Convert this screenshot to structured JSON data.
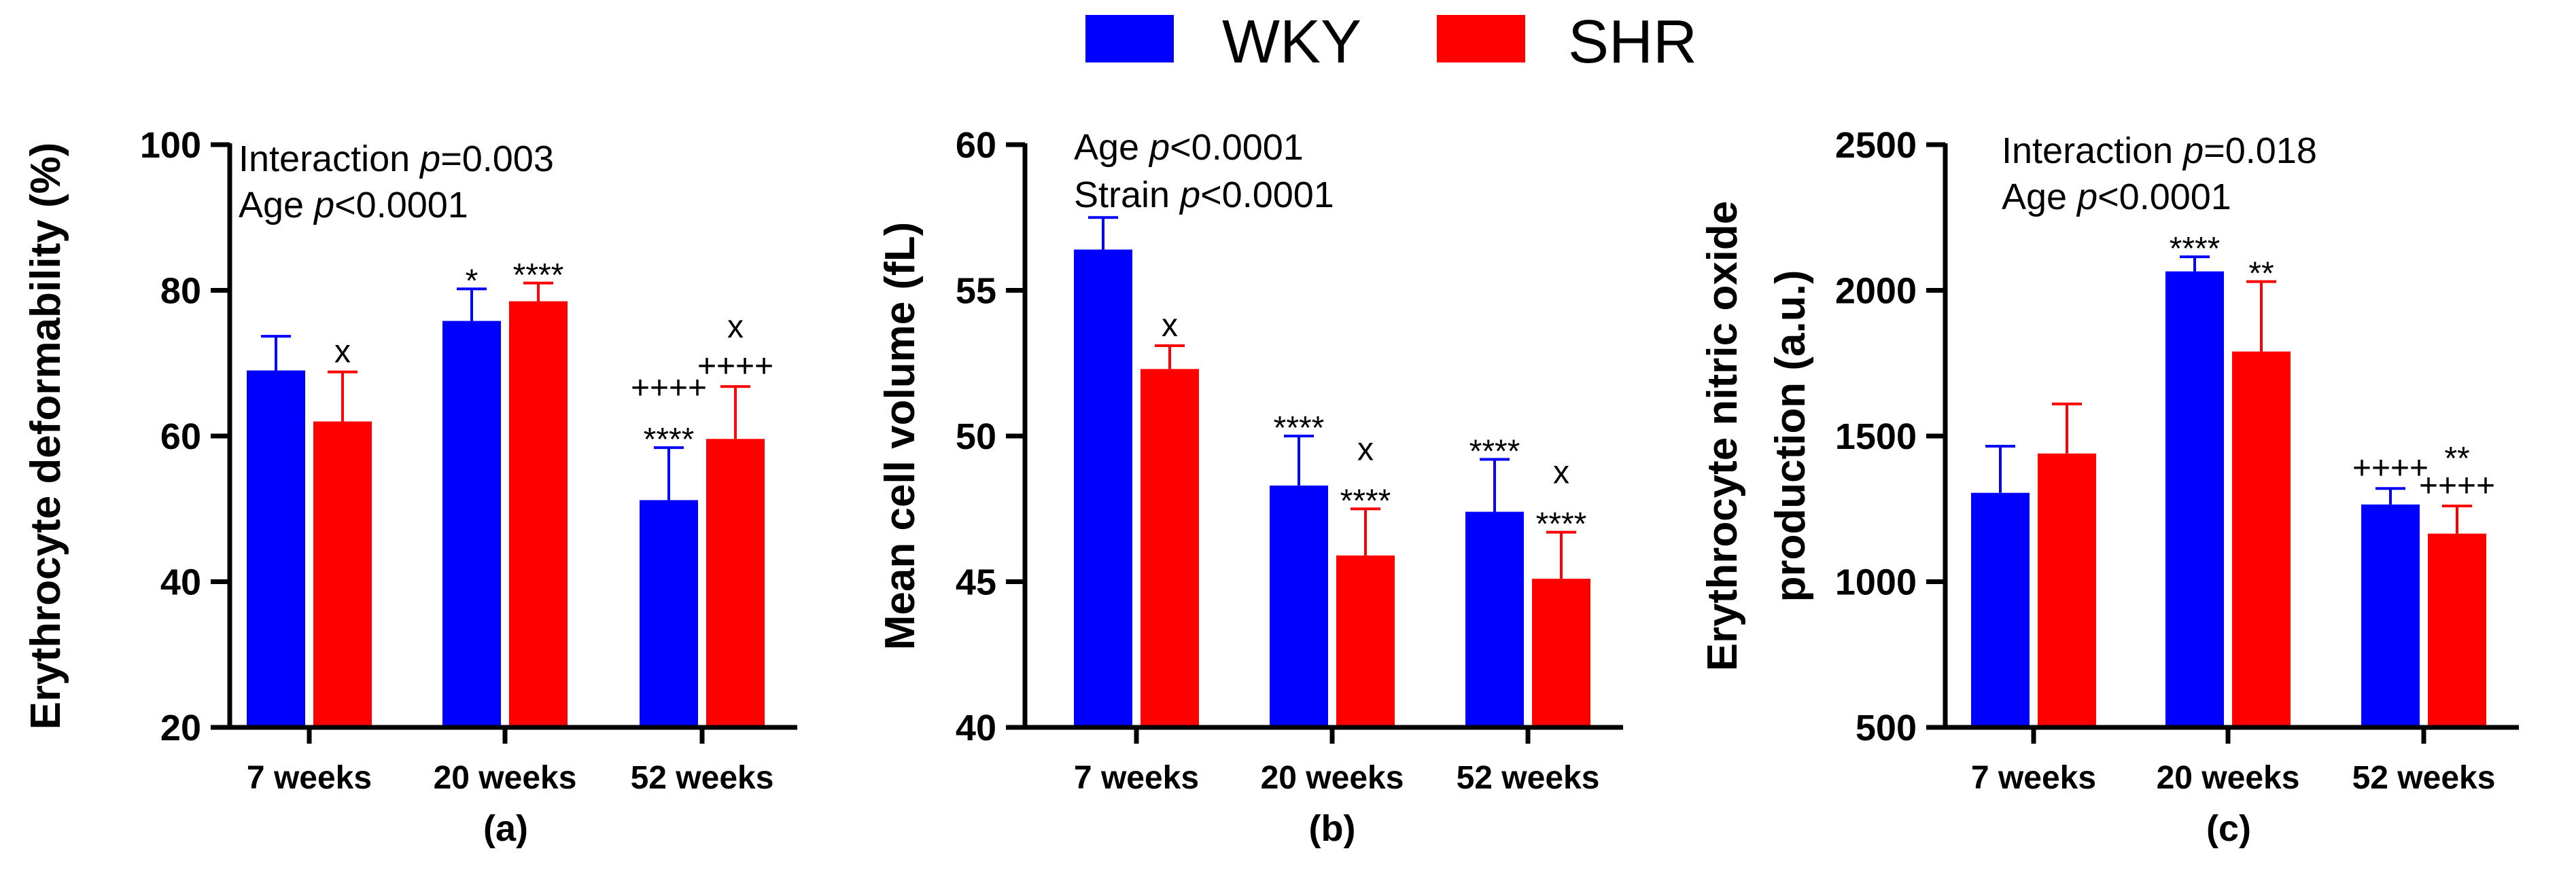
{
  "legend": {
    "entries": [
      {
        "label": "WKY",
        "color": "#0000ff"
      },
      {
        "label": "SHR",
        "color": "#ff0000"
      }
    ]
  },
  "colors": {
    "wky": "#0000ff",
    "shr": "#ff0000",
    "axis": "#000000"
  },
  "chart_data": [
    {
      "type": "bar",
      "panel_label": "(a)",
      "ylabel": "Erythrocyte deformability  (%)",
      "ylim": [
        20,
        100
      ],
      "yticks": [
        20,
        40,
        60,
        80,
        100
      ],
      "categories": [
        "7 weeks",
        "20 weeks",
        "52 weeks"
      ],
      "stats": [
        {
          "parts": [
            {
              "t": "Interaction "
            },
            {
              "t": "p",
              "i": true
            },
            {
              "t": "=0.003"
            }
          ]
        },
        {
          "parts": [
            {
              "t": "Age "
            },
            {
              "t": "p",
              "i": true
            },
            {
              "t": "<0.0001"
            }
          ]
        }
      ],
      "series": [
        {
          "name": "WKY",
          "values": [
            69,
            75.8,
            51.2
          ],
          "errors": [
            4.7,
            4.4,
            7.2
          ],
          "annotations": [
            [],
            [
              "*"
            ],
            [
              "****",
              "++++"
            ]
          ]
        },
        {
          "name": "SHR",
          "values": [
            62,
            78.5,
            59.6
          ],
          "errors": [
            6.8,
            2.5,
            7.2
          ],
          "annotations": [
            [
              "x"
            ],
            [
              "****"
            ],
            [
              "++++",
              "x"
            ]
          ]
        }
      ]
    },
    {
      "type": "bar",
      "panel_label": "(b)",
      "ylabel": "Mean cell volume (fL)",
      "ylim": [
        40,
        60
      ],
      "yticks": [
        40,
        45,
        50,
        55,
        60
      ],
      "categories": [
        "7 weeks",
        "20 weeks",
        "52 weeks"
      ],
      "stats": [
        {
          "parts": [
            {
              "t": "Age "
            },
            {
              "t": "p",
              "i": true
            },
            {
              "t": "<0.0001"
            }
          ]
        },
        {
          "parts": [
            {
              "t": "Strain "
            },
            {
              "t": "p",
              "i": true
            },
            {
              "t": "<0.0001"
            }
          ]
        }
      ],
      "series": [
        {
          "name": "WKY",
          "values": [
            56.4,
            48.3,
            47.4
          ],
          "errors": [
            1.1,
            1.7,
            1.8
          ],
          "annotations": [
            [],
            [
              "****"
            ],
            [
              "****"
            ]
          ]
        },
        {
          "name": "SHR",
          "values": [
            52.3,
            45.9,
            45.1
          ],
          "errors": [
            0.8,
            1.6,
            1.6
          ],
          "annotations": [
            [
              "x"
            ],
            [
              "****",
              "x"
            ],
            [
              "****",
              "x"
            ]
          ]
        }
      ]
    },
    {
      "type": "bar",
      "panel_label": "(c)",
      "ylabel": [
        "Erythrocyte nitric oxide",
        "production (a.u.)"
      ],
      "ylim": [
        500,
        2500
      ],
      "yticks": [
        500,
        1000,
        1500,
        2000,
        2500
      ],
      "categories": [
        "7 weeks",
        "20 weeks",
        "52 weeks"
      ],
      "stats": [
        {
          "parts": [
            {
              "t": "Interaction "
            },
            {
              "t": "p",
              "i": true
            },
            {
              "t": "=0.018"
            }
          ]
        },
        {
          "parts": [
            {
              "t": "Age "
            },
            {
              "t": "p",
              "i": true
            },
            {
              "t": "<0.0001"
            }
          ]
        }
      ],
      "series": [
        {
          "name": "WKY",
          "values": [
            1305,
            2065,
            1265
          ],
          "errors": [
            160,
            50,
            55
          ],
          "annotations": [
            [],
            [
              "****"
            ],
            [
              "++++"
            ]
          ]
        },
        {
          "name": "SHR",
          "values": [
            1440,
            1790,
            1165
          ],
          "errors": [
            170,
            240,
            95
          ],
          "annotations": [
            [],
            [
              "**"
            ],
            [
              "++++",
              "**"
            ]
          ]
        }
      ]
    }
  ]
}
